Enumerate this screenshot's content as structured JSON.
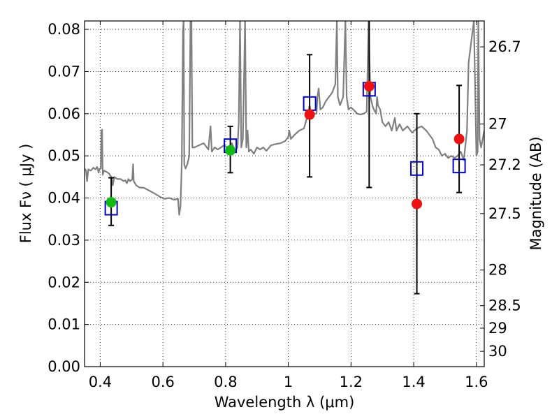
{
  "chart_data": {
    "type": "scatter",
    "xlabel": "Wavelength  λ (μm)",
    "ylabel": "Flux  Fν  ( μJy )",
    "ylabel2": "Magnitude (AB)",
    "xlim": [
      0.35,
      1.625
    ],
    "ylim": [
      0.0,
      0.082
    ],
    "grid": true,
    "x_ticks": [
      {
        "value": 0.4,
        "label": "0.4"
      },
      {
        "value": 0.6,
        "label": "0.6"
      },
      {
        "value": 0.8,
        "label": "0.8"
      },
      {
        "value": 1.0,
        "label": "1"
      },
      {
        "value": 1.2,
        "label": "1.2"
      },
      {
        "value": 1.4,
        "label": "1.4"
      },
      {
        "value": 1.6,
        "label": "1.6"
      }
    ],
    "y_ticks": [
      {
        "value": 0.0,
        "label": "0.00"
      },
      {
        "value": 0.01,
        "label": "0.01"
      },
      {
        "value": 0.02,
        "label": "0.02"
      },
      {
        "value": 0.03,
        "label": "0.03"
      },
      {
        "value": 0.04,
        "label": "0.04"
      },
      {
        "value": 0.05,
        "label": "0.05"
      },
      {
        "value": 0.06,
        "label": "0.06"
      },
      {
        "value": 0.07,
        "label": "0.07"
      },
      {
        "value": 0.08,
        "label": "0.08"
      }
    ],
    "mag_ticks": [
      {
        "value": 26.7,
        "label": "26.7"
      },
      {
        "value": 27.0,
        "label": "27"
      },
      {
        "value": 27.2,
        "label": "27.2"
      },
      {
        "value": 27.5,
        "label": "27.5"
      },
      {
        "value": 28.0,
        "label": "28"
      },
      {
        "value": 28.5,
        "label": "28.5"
      },
      {
        "value": 29.0,
        "label": "29"
      },
      {
        "value": 30.0,
        "label": "30"
      }
    ],
    "series": [
      {
        "kind": "template-spectrum",
        "color": "#808080",
        "points": [
          [
            0.35,
            0.047
          ],
          [
            0.355,
            0.0465
          ],
          [
            0.358,
            0.044
          ],
          [
            0.362,
            0.0468
          ],
          [
            0.37,
            0.0465
          ],
          [
            0.378,
            0.0472
          ],
          [
            0.385,
            0.0468
          ],
          [
            0.39,
            0.0474
          ],
          [
            0.395,
            0.046
          ],
          [
            0.398,
            0.047
          ],
          [
            0.402,
            0.047
          ],
          [
            0.404,
            0.056
          ],
          [
            0.406,
            0.0562
          ],
          [
            0.408,
            0.0455
          ],
          [
            0.412,
            0.0465
          ],
          [
            0.42,
            0.0462
          ],
          [
            0.428,
            0.0458
          ],
          [
            0.436,
            0.0449
          ],
          [
            0.44,
            0.043
          ],
          [
            0.445,
            0.045
          ],
          [
            0.455,
            0.0445
          ],
          [
            0.465,
            0.0445
          ],
          [
            0.475,
            0.044
          ],
          [
            0.48,
            0.0442
          ],
          [
            0.485,
            0.0435
          ],
          [
            0.49,
            0.0445
          ],
          [
            0.495,
            0.044
          ],
          [
            0.502,
            0.0444
          ],
          [
            0.505,
            0.048
          ],
          [
            0.507,
            0.044
          ],
          [
            0.515,
            0.043
          ],
          [
            0.525,
            0.0425
          ],
          [
            0.54,
            0.0424
          ],
          [
            0.56,
            0.0416
          ],
          [
            0.575,
            0.041
          ],
          [
            0.59,
            0.0403
          ],
          [
            0.605,
            0.0398
          ],
          [
            0.62,
            0.04
          ],
          [
            0.635,
            0.0396
          ],
          [
            0.648,
            0.0398
          ],
          [
            0.652,
            0.036
          ],
          [
            0.656,
            0.038
          ],
          [
            0.66,
            0.048
          ],
          [
            0.664,
            0.08
          ],
          [
            0.666,
            0.082
          ],
          [
            0.668,
            0.048
          ],
          [
            0.672,
            0.047
          ],
          [
            0.678,
            0.048
          ],
          [
            0.684,
            0.05
          ],
          [
            0.688,
            0.082
          ],
          [
            0.691,
            0.082
          ],
          [
            0.694,
            0.052
          ],
          [
            0.7,
            0.052
          ],
          [
            0.715,
            0.0525
          ],
          [
            0.73,
            0.053
          ],
          [
            0.745,
            0.0515
          ],
          [
            0.752,
            0.057
          ],
          [
            0.756,
            0.051
          ],
          [
            0.765,
            0.052
          ],
          [
            0.775,
            0.0515
          ],
          [
            0.785,
            0.052
          ],
          [
            0.795,
            0.0525
          ],
          [
            0.805,
            0.052
          ],
          [
            0.812,
            0.0515
          ],
          [
            0.82,
            0.053
          ],
          [
            0.83,
            0.051
          ],
          [
            0.838,
            0.052
          ],
          [
            0.842,
            0.058
          ],
          [
            0.846,
            0.082
          ],
          [
            0.85,
            0.052
          ],
          [
            0.855,
            0.054
          ],
          [
            0.862,
            0.082
          ],
          [
            0.866,
            0.052
          ],
          [
            0.87,
            0.056
          ],
          [
            0.874,
            0.051
          ],
          [
            0.88,
            0.0515
          ],
          [
            0.89,
            0.0505
          ],
          [
            0.9,
            0.052
          ],
          [
            0.91,
            0.0515
          ],
          [
            0.92,
            0.052
          ],
          [
            0.93,
            0.0512
          ],
          [
            0.945,
            0.0525
          ],
          [
            0.96,
            0.0528
          ],
          [
            0.975,
            0.053
          ],
          [
            0.99,
            0.0535
          ],
          [
            1.0,
            0.0545
          ],
          [
            1.003,
            0.056
          ],
          [
            1.008,
            0.054
          ],
          [
            1.02,
            0.055
          ],
          [
            1.035,
            0.056
          ],
          [
            1.05,
            0.0565
          ],
          [
            1.063,
            0.06
          ],
          [
            1.068,
            0.062
          ],
          [
            1.073,
            0.06
          ],
          [
            1.08,
            0.06
          ],
          [
            1.09,
            0.06
          ],
          [
            1.093,
            0.064
          ],
          [
            1.097,
            0.066
          ],
          [
            1.102,
            0.061
          ],
          [
            1.11,
            0.0615
          ],
          [
            1.12,
            0.063
          ],
          [
            1.13,
            0.064
          ],
          [
            1.14,
            0.065
          ],
          [
            1.15,
            0.067
          ],
          [
            1.155,
            0.082
          ],
          [
            1.158,
            0.064
          ],
          [
            1.165,
            0.062
          ],
          [
            1.175,
            0.064
          ],
          [
            1.182,
            0.082
          ],
          [
            1.186,
            0.064
          ],
          [
            1.192,
            0.061
          ],
          [
            1.2,
            0.0615
          ],
          [
            1.21,
            0.0608
          ],
          [
            1.22,
            0.06
          ],
          [
            1.23,
            0.0598
          ],
          [
            1.24,
            0.06
          ],
          [
            1.25,
            0.0605
          ],
          [
            1.256,
            0.082
          ],
          [
            1.262,
            0.064
          ],
          [
            1.27,
            0.0615
          ],
          [
            1.28,
            0.06
          ],
          [
            1.283,
            0.064
          ],
          [
            1.286,
            0.062
          ],
          [
            1.293,
            0.061
          ],
          [
            1.3,
            0.058
          ],
          [
            1.31,
            0.057
          ],
          [
            1.32,
            0.058
          ],
          [
            1.33,
            0.056
          ],
          [
            1.34,
            0.059
          ],
          [
            1.345,
            0.056
          ],
          [
            1.355,
            0.0575
          ],
          [
            1.365,
            0.056
          ],
          [
            1.38,
            0.057
          ],
          [
            1.395,
            0.0555
          ],
          [
            1.41,
            0.0565
          ],
          [
            1.425,
            0.057
          ],
          [
            1.44,
            0.056
          ],
          [
            1.45,
            0.055
          ],
          [
            1.46,
            0.054
          ],
          [
            1.47,
            0.052
          ],
          [
            1.48,
            0.0515
          ],
          [
            1.49,
            0.05
          ],
          [
            1.5,
            0.0505
          ],
          [
            1.51,
            0.0495
          ],
          [
            1.52,
            0.05
          ],
          [
            1.53,
            0.0495
          ],
          [
            1.54,
            0.05
          ],
          [
            1.55,
            0.051
          ],
          [
            1.56,
            0.049
          ],
          [
            1.57,
            0.056
          ],
          [
            1.575,
            0.072
          ],
          [
            1.585,
            0.078
          ],
          [
            1.592,
            0.082
          ],
          [
            1.6,
            0.05
          ],
          [
            1.604,
            0.051
          ],
          [
            1.606,
            0.082
          ],
          [
            1.61,
            0.054
          ],
          [
            1.615,
            0.052
          ],
          [
            1.62,
            0.054
          ],
          [
            1.625,
            0.056
          ]
        ]
      },
      {
        "kind": "model-photometry",
        "marker": "open-square",
        "color": "#0000cc",
        "points": [
          {
            "x": 0.435,
            "y": 0.0376
          },
          {
            "x": 0.815,
            "y": 0.0524
          },
          {
            "x": 1.068,
            "y": 0.0624
          },
          {
            "x": 1.258,
            "y": 0.0658
          },
          {
            "x": 1.41,
            "y": 0.047
          },
          {
            "x": 1.545,
            "y": 0.0476
          }
        ]
      },
      {
        "kind": "observed-detections",
        "marker": "filled-circle",
        "color": "#11bb11",
        "points": [
          {
            "x": 0.435,
            "y": 0.039,
            "err_low": 0.0055,
            "err_high": 0.0058
          },
          {
            "x": 0.815,
            "y": 0.0513,
            "err_low": 0.0053,
            "err_high": 0.0057
          }
        ]
      },
      {
        "kind": "observed-low-significance",
        "marker": "filled-circle",
        "color": "#ee1111",
        "points": [
          {
            "x": 1.068,
            "y": 0.0598,
            "err_low": 0.0148,
            "err_high": 0.0142
          },
          {
            "x": 1.258,
            "y": 0.0665,
            "err_low": 0.024,
            "err_high": 0.02
          },
          {
            "x": 1.41,
            "y": 0.0386,
            "err_low": 0.0213,
            "err_high": 0.0214
          },
          {
            "x": 1.545,
            "y": 0.054,
            "err_low": 0.0127,
            "err_high": 0.0127
          }
        ]
      }
    ]
  }
}
